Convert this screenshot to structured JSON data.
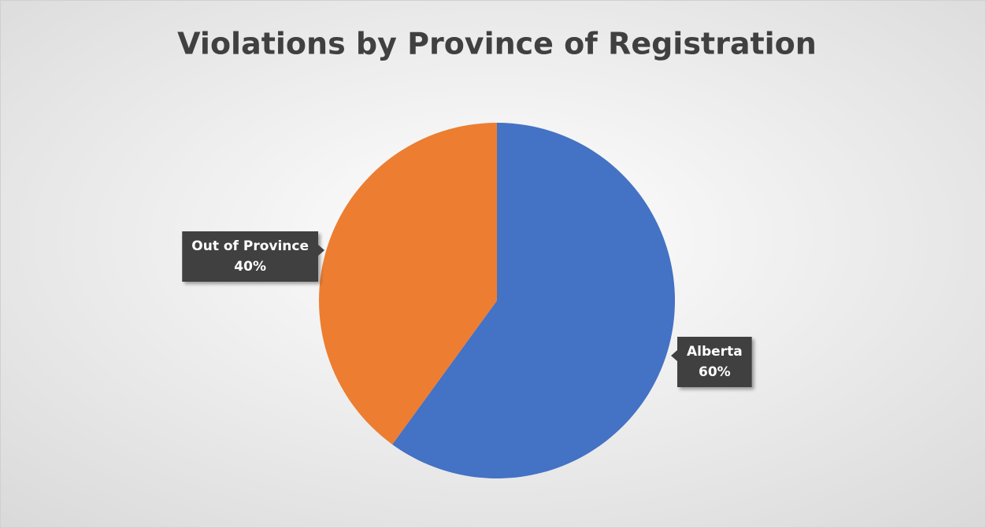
{
  "chart_data": {
    "type": "pie",
    "title": "Violations by Province of Registration",
    "categories": [
      "Alberta",
      "Out of Province"
    ],
    "values": [
      60,
      40
    ],
    "value_labels": [
      "60%",
      "40%"
    ],
    "colors": [
      "#4472c4",
      "#ed7d31"
    ]
  }
}
